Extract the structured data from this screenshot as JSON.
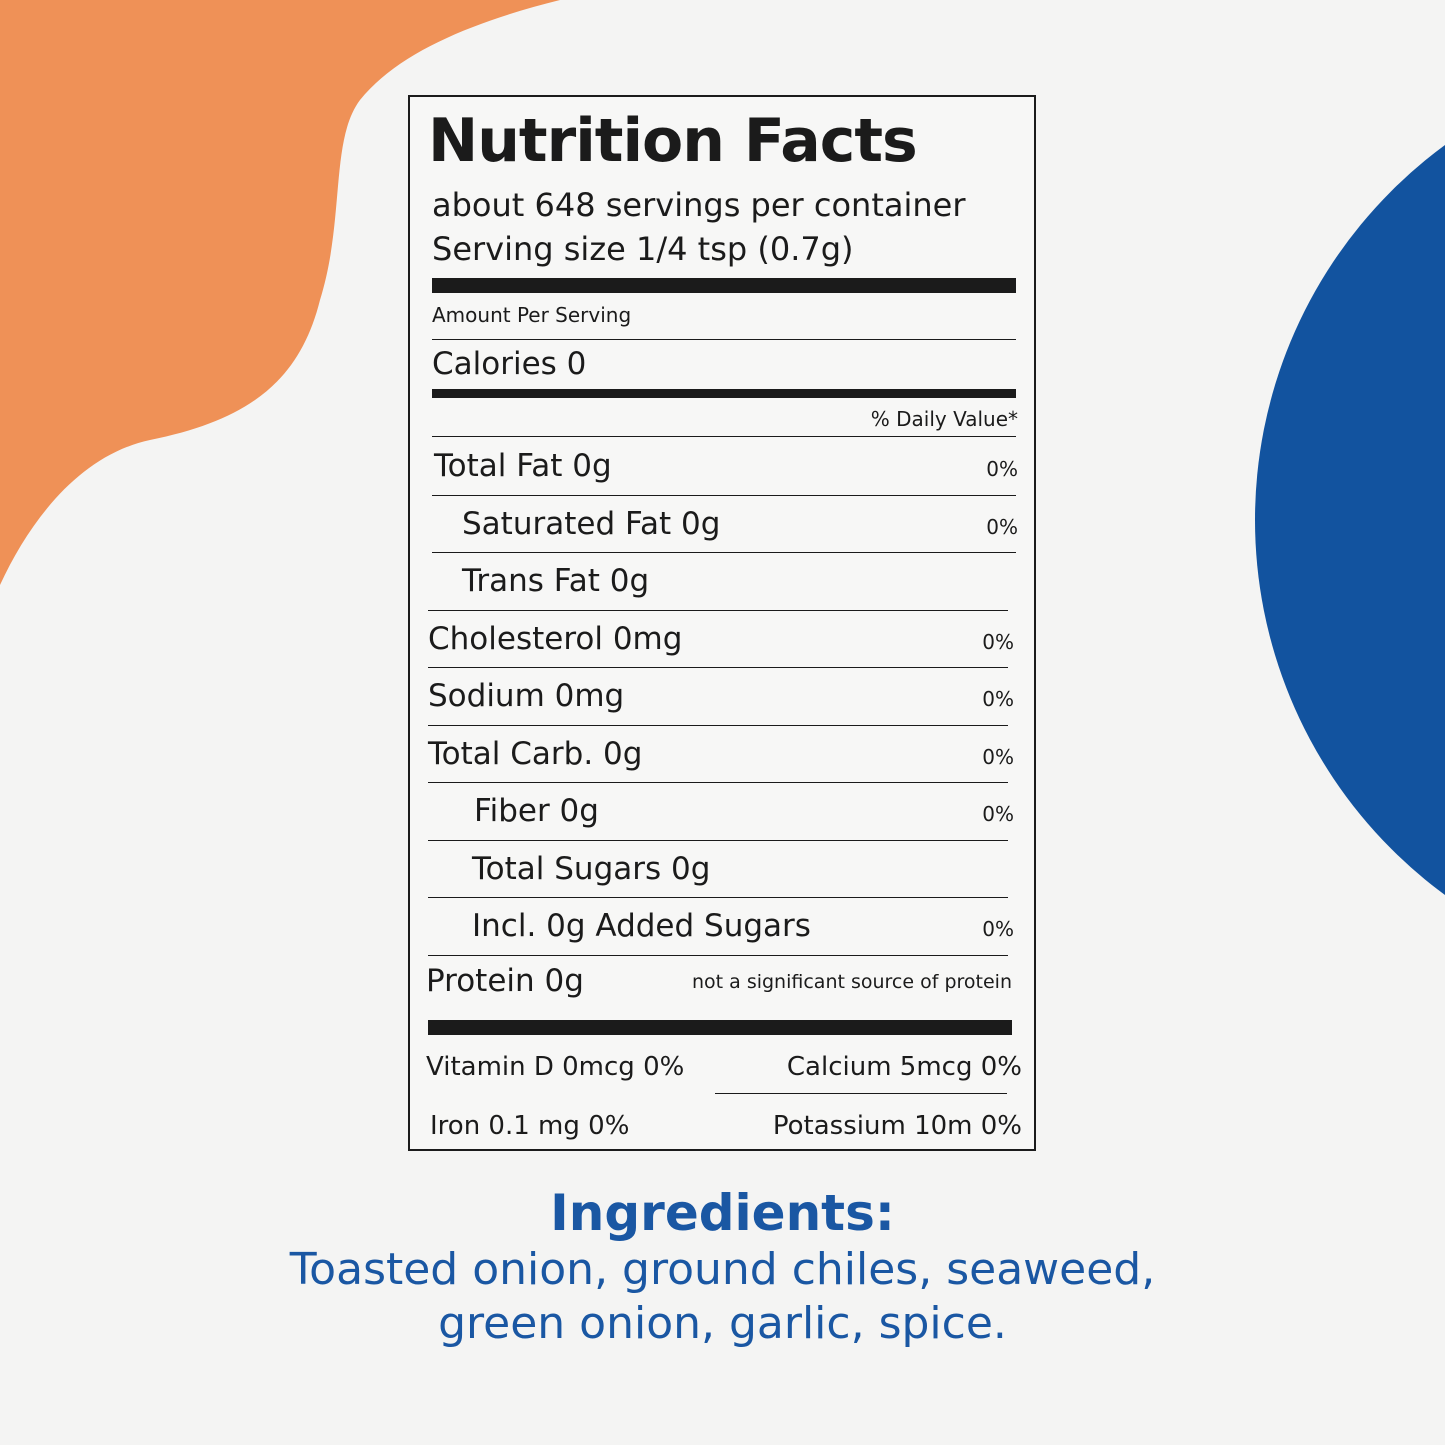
{
  "label": {
    "title": "Nutrition Facts",
    "servings": "about 648 servings per container",
    "serving_size": "Serving size 1/4 tsp (0.7g)",
    "amount_per_serving": "Amount Per Serving",
    "calories": "Calories 0",
    "daily_value_header": "% Daily Value*",
    "rows": [
      {
        "name": "Total Fat 0g",
        "dv": "0%"
      },
      {
        "name": "Saturated Fat 0g",
        "dv": "0%"
      },
      {
        "name": "Trans Fat 0g"
      },
      {
        "name": "Cholesterol 0mg",
        "dv": "0%"
      },
      {
        "name": "Sodium 0mg",
        "dv": "0%"
      },
      {
        "name": "Total Carb. 0g",
        "dv": "0%"
      },
      {
        "name": "Fiber 0g",
        "dv": "0%"
      },
      {
        "name": "Total Sugars 0g"
      },
      {
        "name": "Incl. 0g Added Sugars",
        "dv": "0%"
      }
    ],
    "protein": {
      "name": "Protein 0g",
      "note": "not a significant source of protein"
    },
    "vitamins": [
      [
        "Vitamin D 0mcg 0%",
        "Calcium 5mcg 0%"
      ],
      [
        "Iron 0.1 mg 0%",
        "Potassium 10m 0%"
      ]
    ]
  },
  "ingredients": {
    "heading": "Ingredients:",
    "lines": [
      "Toasted onion, ground chiles, seaweed,",
      "green onion, garlic, spice."
    ]
  }
}
